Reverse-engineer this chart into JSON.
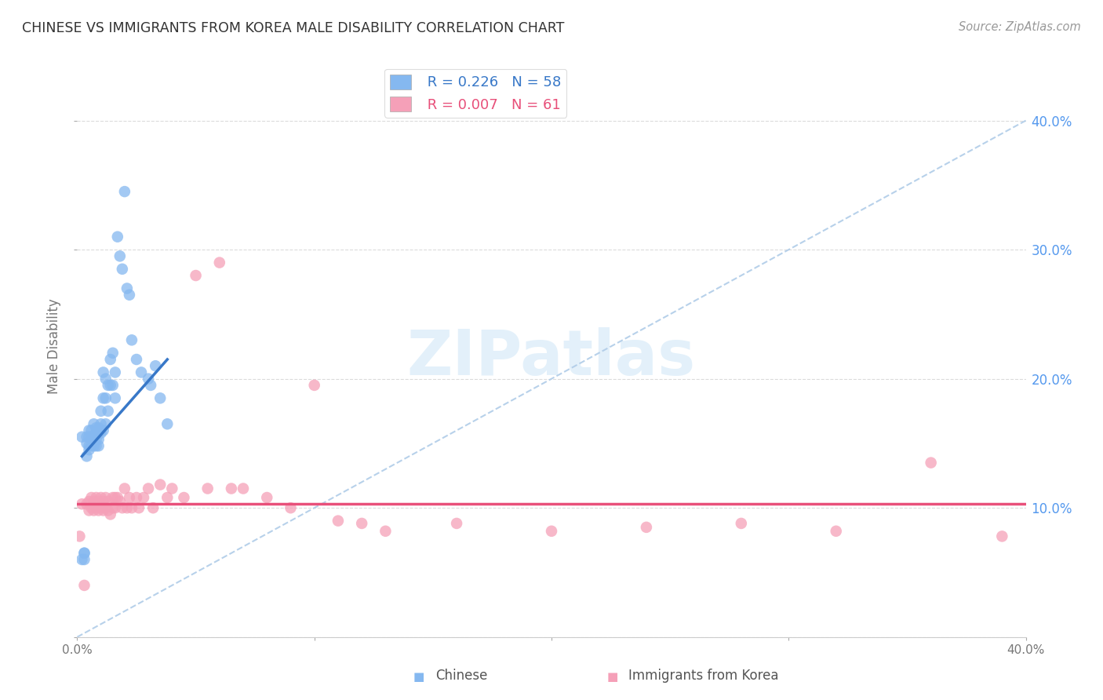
{
  "title": "CHINESE VS IMMIGRANTS FROM KOREA MALE DISABILITY CORRELATION CHART",
  "source": "Source: ZipAtlas.com",
  "ylabel": "Male Disability",
  "xlabel_chinese": "Chinese",
  "xlabel_korea": "Immigrants from Korea",
  "watermark": "ZIPatlas",
  "xlim": [
    0.0,
    0.4
  ],
  "ylim": [
    0.0,
    0.45
  ],
  "yticks": [
    0.0,
    0.1,
    0.2,
    0.3,
    0.4
  ],
  "xticks": [
    0.0,
    0.1,
    0.2,
    0.3,
    0.4
  ],
  "ytick_labels": [
    "",
    "10.0%",
    "20.0%",
    "30.0%",
    "40.0%"
  ],
  "xtick_labels": [
    "0.0%",
    "",
    "",
    "",
    "40.0%"
  ],
  "legend_blue_R": "R = 0.226",
  "legend_blue_N": "N = 58",
  "legend_pink_R": "R = 0.007",
  "legend_pink_N": "N = 61",
  "blue_color": "#85b8f0",
  "pink_color": "#f5a0b8",
  "blue_line_color": "#3878c8",
  "pink_line_color": "#e8507a",
  "dashed_line_color": "#b0cce8",
  "grid_color": "#cccccc",
  "title_color": "#333333",
  "right_tick_color": "#5599ee",
  "chinese_points_x": [
    0.002,
    0.003,
    0.003,
    0.004,
    0.004,
    0.004,
    0.005,
    0.005,
    0.005,
    0.005,
    0.006,
    0.006,
    0.006,
    0.007,
    0.007,
    0.007,
    0.007,
    0.008,
    0.008,
    0.008,
    0.008,
    0.009,
    0.009,
    0.009,
    0.009,
    0.01,
    0.01,
    0.01,
    0.011,
    0.011,
    0.011,
    0.012,
    0.012,
    0.012,
    0.013,
    0.013,
    0.014,
    0.014,
    0.015,
    0.015,
    0.016,
    0.016,
    0.017,
    0.018,
    0.019,
    0.02,
    0.021,
    0.022,
    0.023,
    0.025,
    0.027,
    0.03,
    0.031,
    0.033,
    0.035,
    0.038,
    0.002,
    0.003
  ],
  "chinese_points_y": [
    0.155,
    0.065,
    0.065,
    0.155,
    0.15,
    0.14,
    0.16,
    0.155,
    0.148,
    0.145,
    0.16,
    0.155,
    0.148,
    0.165,
    0.155,
    0.152,
    0.148,
    0.162,
    0.158,
    0.153,
    0.148,
    0.162,
    0.158,
    0.153,
    0.148,
    0.175,
    0.165,
    0.158,
    0.205,
    0.185,
    0.16,
    0.2,
    0.185,
    0.165,
    0.195,
    0.175,
    0.215,
    0.195,
    0.22,
    0.195,
    0.205,
    0.185,
    0.31,
    0.295,
    0.285,
    0.345,
    0.27,
    0.265,
    0.23,
    0.215,
    0.205,
    0.2,
    0.195,
    0.21,
    0.185,
    0.165,
    0.06,
    0.06
  ],
  "korea_points_x": [
    0.002,
    0.003,
    0.004,
    0.005,
    0.005,
    0.006,
    0.006,
    0.007,
    0.007,
    0.008,
    0.008,
    0.009,
    0.009,
    0.01,
    0.01,
    0.011,
    0.011,
    0.012,
    0.012,
    0.013,
    0.013,
    0.014,
    0.015,
    0.015,
    0.016,
    0.016,
    0.017,
    0.018,
    0.019,
    0.02,
    0.021,
    0.022,
    0.023,
    0.025,
    0.026,
    0.028,
    0.03,
    0.032,
    0.035,
    0.038,
    0.04,
    0.045,
    0.05,
    0.055,
    0.06,
    0.065,
    0.07,
    0.08,
    0.09,
    0.1,
    0.11,
    0.12,
    0.13,
    0.16,
    0.2,
    0.24,
    0.28,
    0.32,
    0.36,
    0.39,
    0.001
  ],
  "korea_points_y": [
    0.103,
    0.04,
    0.103,
    0.105,
    0.098,
    0.108,
    0.1,
    0.105,
    0.098,
    0.108,
    0.1,
    0.105,
    0.098,
    0.108,
    0.1,
    0.105,
    0.098,
    0.108,
    0.1,
    0.105,
    0.098,
    0.095,
    0.108,
    0.1,
    0.108,
    0.1,
    0.108,
    0.105,
    0.1,
    0.115,
    0.1,
    0.108,
    0.1,
    0.108,
    0.1,
    0.108,
    0.115,
    0.1,
    0.118,
    0.108,
    0.115,
    0.108,
    0.28,
    0.115,
    0.29,
    0.115,
    0.115,
    0.108,
    0.1,
    0.195,
    0.09,
    0.088,
    0.082,
    0.088,
    0.082,
    0.085,
    0.088,
    0.082,
    0.135,
    0.078,
    0.078
  ],
  "blue_trendline_x": [
    0.002,
    0.038
  ],
  "blue_trendline_y": [
    0.14,
    0.215
  ],
  "pink_trendline_x": [
    0.0,
    0.4
  ],
  "pink_trendline_y": [
    0.103,
    0.103
  ],
  "dashed_trendline_x": [
    0.0,
    0.4
  ],
  "dashed_trendline_y": [
    0.0,
    0.4
  ]
}
